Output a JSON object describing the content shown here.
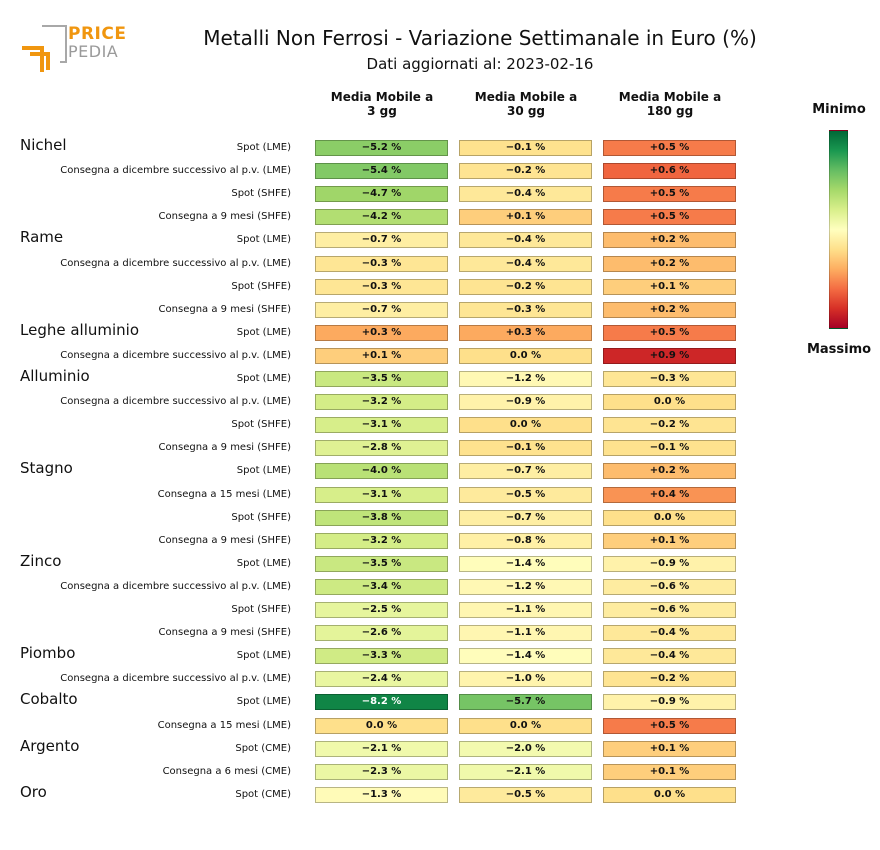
{
  "logo": {
    "word1": "PRICE",
    "word2": "PEDIA"
  },
  "chart_data": {
    "type": "heatmap",
    "title": "Metalli Non Ferrosi - Variazione Settimanale in Euro (%)",
    "subtitle": "Dati aggiornati al: 2023-02-16",
    "columns": [
      "Media Mobile a\n3 gg",
      "Media Mobile a\n30 gg",
      "Media Mobile a\n180 gg"
    ],
    "unit": "%",
    "value_range": [
      -8.2,
      0.9
    ],
    "legend": {
      "top_label": "Minimo",
      "bottom_label": "Massimo",
      "placement": "right"
    },
    "groups": [
      {
        "name": "Nichel",
        "rows": [
          {
            "label": "Spot (LME)",
            "values": [
              -5.2,
              -0.1,
              0.5
            ]
          },
          {
            "label": "Consegna a dicembre successivo al p.v. (LME)",
            "values": [
              -5.4,
              -0.2,
              0.6
            ]
          },
          {
            "label": "Spot (SHFE)",
            "values": [
              -4.7,
              -0.4,
              0.5
            ]
          },
          {
            "label": "Consegna a 9 mesi (SHFE)",
            "values": [
              -4.2,
              0.1,
              0.5
            ]
          }
        ]
      },
      {
        "name": "Rame",
        "rows": [
          {
            "label": "Spot (LME)",
            "values": [
              -0.7,
              -0.4,
              0.2
            ]
          },
          {
            "label": "Consegna a dicembre successivo al p.v. (LME)",
            "values": [
              -0.3,
              -0.4,
              0.2
            ]
          },
          {
            "label": "Spot (SHFE)",
            "values": [
              -0.3,
              -0.2,
              0.1
            ]
          },
          {
            "label": "Consegna a 9 mesi (SHFE)",
            "values": [
              -0.7,
              -0.3,
              0.2
            ]
          }
        ]
      },
      {
        "name": "Leghe alluminio",
        "rows": [
          {
            "label": "Spot (LME)",
            "values": [
              0.3,
              0.3,
              0.5
            ]
          },
          {
            "label": "Consegna a dicembre successivo al p.v. (LME)",
            "values": [
              0.1,
              0.0,
              0.9
            ]
          }
        ]
      },
      {
        "name": "Alluminio",
        "rows": [
          {
            "label": "Spot (LME)",
            "values": [
              -3.5,
              -1.2,
              -0.3
            ]
          },
          {
            "label": "Consegna a dicembre successivo al p.v. (LME)",
            "values": [
              -3.2,
              -0.9,
              0.0
            ]
          },
          {
            "label": "Spot (SHFE)",
            "values": [
              -3.1,
              0.0,
              -0.2
            ]
          },
          {
            "label": "Consegna a 9 mesi (SHFE)",
            "values": [
              -2.8,
              -0.1,
              -0.1
            ]
          }
        ]
      },
      {
        "name": "Stagno",
        "rows": [
          {
            "label": "Spot (LME)",
            "values": [
              -4.0,
              -0.7,
              0.2
            ]
          },
          {
            "label": "Consegna a 15 mesi (LME)",
            "values": [
              -3.1,
              -0.5,
              0.4
            ]
          },
          {
            "label": "Spot (SHFE)",
            "values": [
              -3.8,
              -0.7,
              0.0
            ]
          },
          {
            "label": "Consegna a 9 mesi (SHFE)",
            "values": [
              -3.2,
              -0.8,
              0.1
            ]
          }
        ]
      },
      {
        "name": "Zinco",
        "rows": [
          {
            "label": "Spot (LME)",
            "values": [
              -3.5,
              -1.4,
              -0.9
            ]
          },
          {
            "label": "Consegna a dicembre successivo al p.v. (LME)",
            "values": [
              -3.4,
              -1.2,
              -0.6
            ]
          },
          {
            "label": "Spot (SHFE)",
            "values": [
              -2.5,
              -1.1,
              -0.6
            ]
          },
          {
            "label": "Consegna a 9 mesi (SHFE)",
            "values": [
              -2.6,
              -1.1,
              -0.4
            ]
          }
        ]
      },
      {
        "name": "Piombo",
        "rows": [
          {
            "label": "Spot (LME)",
            "values": [
              -3.3,
              -1.4,
              -0.4
            ]
          },
          {
            "label": "Consegna a dicembre successivo al p.v. (LME)",
            "values": [
              -2.4,
              -1.0,
              -0.2
            ]
          }
        ]
      },
      {
        "name": "Cobalto",
        "rows": [
          {
            "label": "Spot (LME)",
            "values": [
              -8.2,
              -5.7,
              -0.9
            ]
          },
          {
            "label": "Consegna a 15 mesi (LME)",
            "values": [
              0.0,
              0.0,
              0.5
            ]
          }
        ]
      },
      {
        "name": "Argento",
        "rows": [
          {
            "label": "Spot (CME)",
            "values": [
              -2.1,
              -2.0,
              0.1
            ]
          },
          {
            "label": "Consegna a 6 mesi (CME)",
            "values": [
              -2.3,
              -2.1,
              0.1
            ]
          }
        ]
      },
      {
        "name": "Oro",
        "rows": [
          {
            "label": "Spot (CME)",
            "values": [
              -1.3,
              -0.5,
              0.0
            ]
          }
        ]
      }
    ]
  }
}
